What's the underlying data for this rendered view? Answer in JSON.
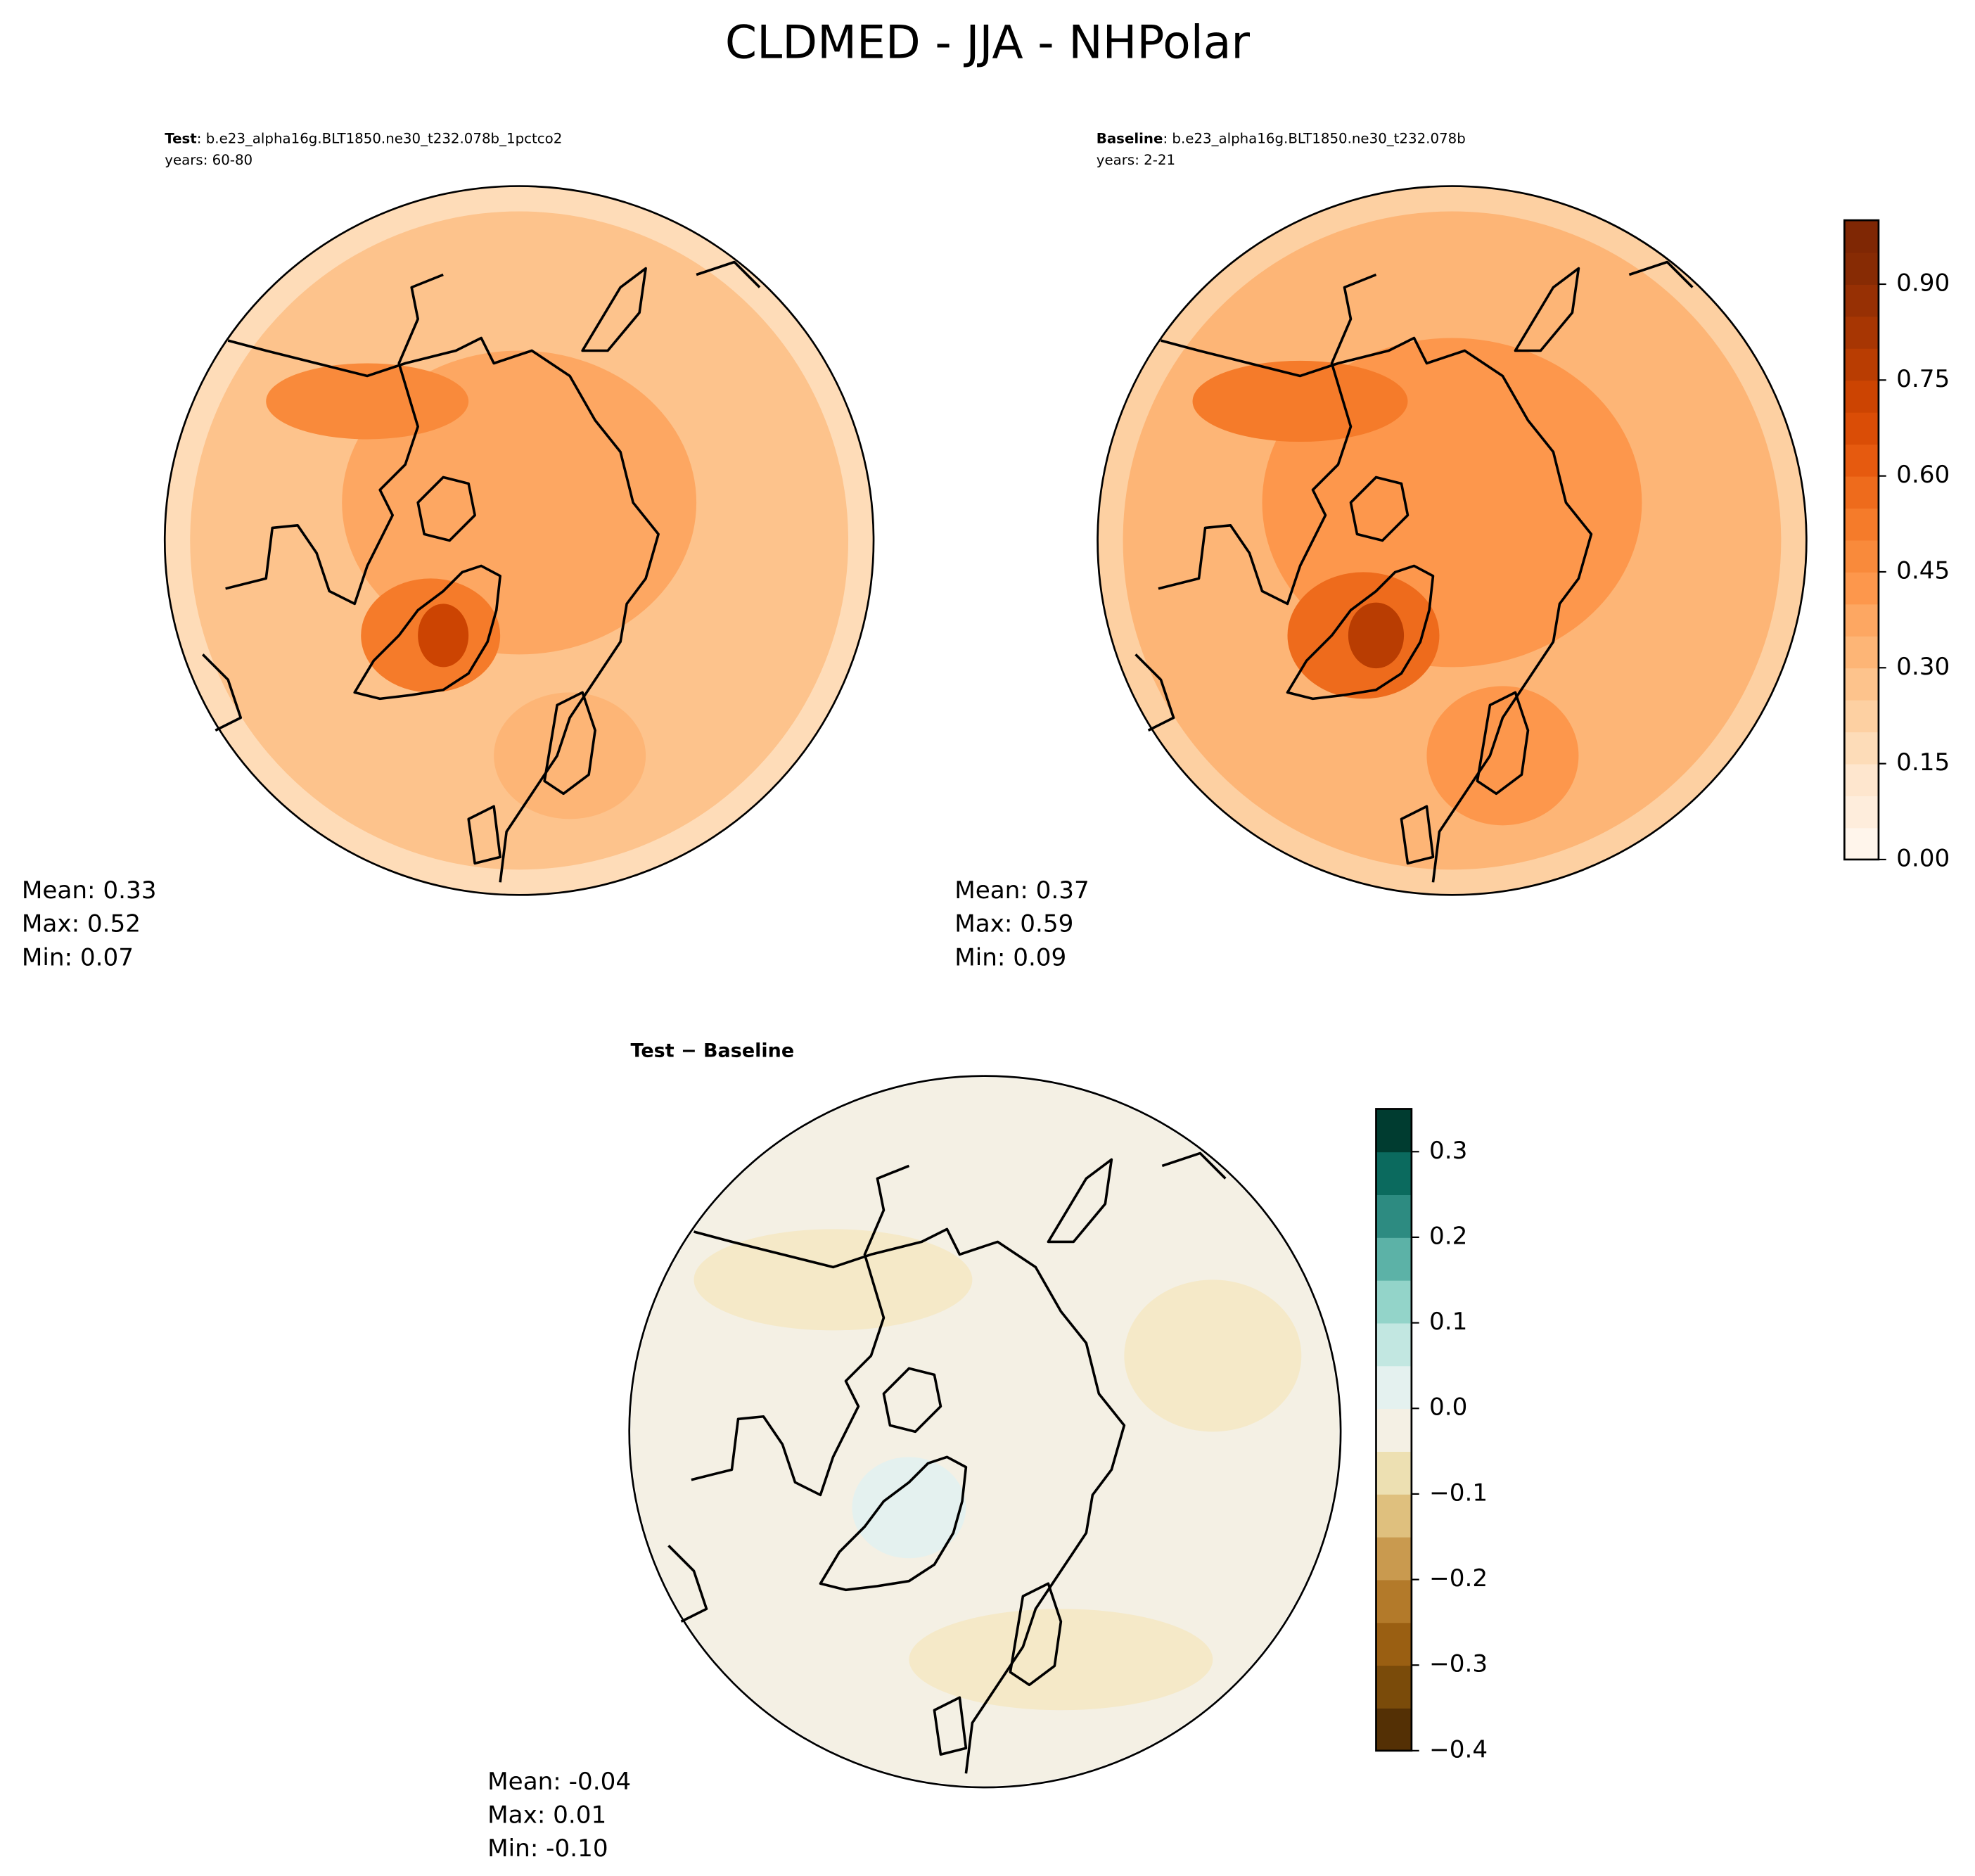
{
  "title": "CLDMED - JJA - NHPolar",
  "panels": [
    {
      "label": "Test",
      "case": ": b.e23_alpha16g.BLT1850.ne30_t232.078b_1pctco2",
      "years": "years: 60-80",
      "stats": [
        {
          "label": "Mean:",
          "value": "0.33"
        },
        {
          "label": "Max:",
          "value": "0.52"
        },
        {
          "label": "Min:",
          "value": "0.07"
        }
      ]
    },
    {
      "label": "Baseline",
      "case": ": b.e23_alpha16g.BLT1850.ne30_t232.078b",
      "years": "years: 2-21",
      "stats": [
        {
          "label": "Mean:",
          "value": "0.37"
        },
        {
          "label": "Max:",
          "value": "0.59"
        },
        {
          "label": "Min:",
          "value": "0.09"
        }
      ]
    },
    {
      "label": "Test − Baseline",
      "stats": [
        {
          "label": "Mean:",
          "value": "-0.04"
        },
        {
          "label": "Max:",
          "value": "0.01"
        },
        {
          "label": "Min:",
          "value": "-0.10"
        }
      ]
    }
  ],
  "colorbars": [
    {
      "lim": [
        0,
        1
      ],
      "ticks": [
        {
          "value": 0,
          "label": "0.00"
        },
        {
          "value": 0.15,
          "label": "0.15"
        },
        {
          "value": 0.3,
          "label": "0.30"
        },
        {
          "value": 0.45,
          "label": "0.45"
        },
        {
          "value": 0.6,
          "label": "0.60"
        },
        {
          "value": 0.75,
          "label": "0.75"
        },
        {
          "value": 0.9,
          "label": "0.90"
        }
      ],
      "colors": [
        "#fff5eb",
        "#feeddc",
        "#fee6ce",
        "#fddcb8",
        "#fdd0a2",
        "#fdc38c",
        "#fdb576",
        "#fda762",
        "#fd974c",
        "#f98a3b",
        "#f57b2a",
        "#ee6b1c",
        "#e65a0f",
        "#da4d06",
        "#cc4402",
        "#b93d02",
        "#a73603",
        "#973004",
        "#872b04",
        "#7f2704"
      ]
    },
    {
      "lim": [
        -0.4,
        0.35
      ],
      "ticks": [
        {
          "value": -0.4,
          "label": "−0.4"
        },
        {
          "value": -0.3,
          "label": "−0.3"
        },
        {
          "value": -0.2,
          "label": "−0.2"
        },
        {
          "value": -0.1,
          "label": "−0.1"
        },
        {
          "value": 0,
          "label": "0.0"
        },
        0.1,
        0.2,
        0.3
      ],
      "colors": [
        "#543005",
        "#7a4b0a",
        "#9a5f12",
        "#b37a2a",
        "#c99a4f",
        "#dfc07e",
        "#ede0b2",
        "#f4f0e4",
        "#e4f1ef",
        "#c2e7e1",
        "#93d4c9",
        "#5cb2a7",
        "#2d8b81",
        "#0b6a5e",
        "#003c30"
      ]
    }
  ]
}
